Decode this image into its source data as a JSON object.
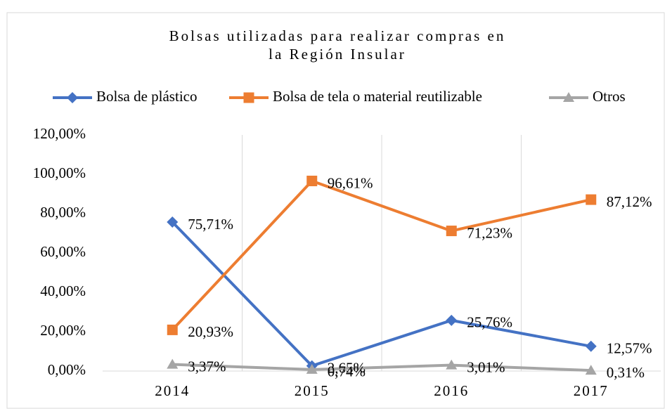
{
  "chart_data": {
    "type": "line",
    "title": "Bolsas utilizadas para realizar compras en la Región Insular",
    "categories": [
      "2014",
      "2015",
      "2016",
      "2017"
    ],
    "series": [
      {
        "name": "Bolsa de plástico",
        "color": "#4472c4",
        "marker": "diamond",
        "values": [
          75.71,
          2.65,
          25.76,
          12.57
        ],
        "value_labels": [
          "75,71%",
          "2,65%",
          "25,76%",
          "12,57%"
        ]
      },
      {
        "name": "Bolsa de tela o material reutilizable",
        "color": "#ed7d31",
        "marker": "square",
        "values": [
          20.93,
          96.61,
          71.23,
          87.12
        ],
        "value_labels": [
          "20,93%",
          "96,61%",
          "71,23%",
          "87,12%"
        ]
      },
      {
        "name": "Otros",
        "color": "#a5a5a5",
        "marker": "triangle",
        "values": [
          3.37,
          0.74,
          3.01,
          0.31
        ],
        "value_labels": [
          "3,37%",
          "0,74%",
          "3,01%",
          "0,31%"
        ]
      }
    ],
    "ylim": [
      0,
      120
    ],
    "yticks": [
      {
        "value": 0,
        "label": "0,00%"
      },
      {
        "value": 20,
        "label": "20,00%"
      },
      {
        "value": 40,
        "label": "40,00%"
      },
      {
        "value": 60,
        "label": "60,00%"
      },
      {
        "value": 80,
        "label": "80,00%"
      },
      {
        "value": 100,
        "label": "100,00%"
      },
      {
        "value": 120,
        "label": "120,00%"
      }
    ],
    "legend": "top"
  }
}
